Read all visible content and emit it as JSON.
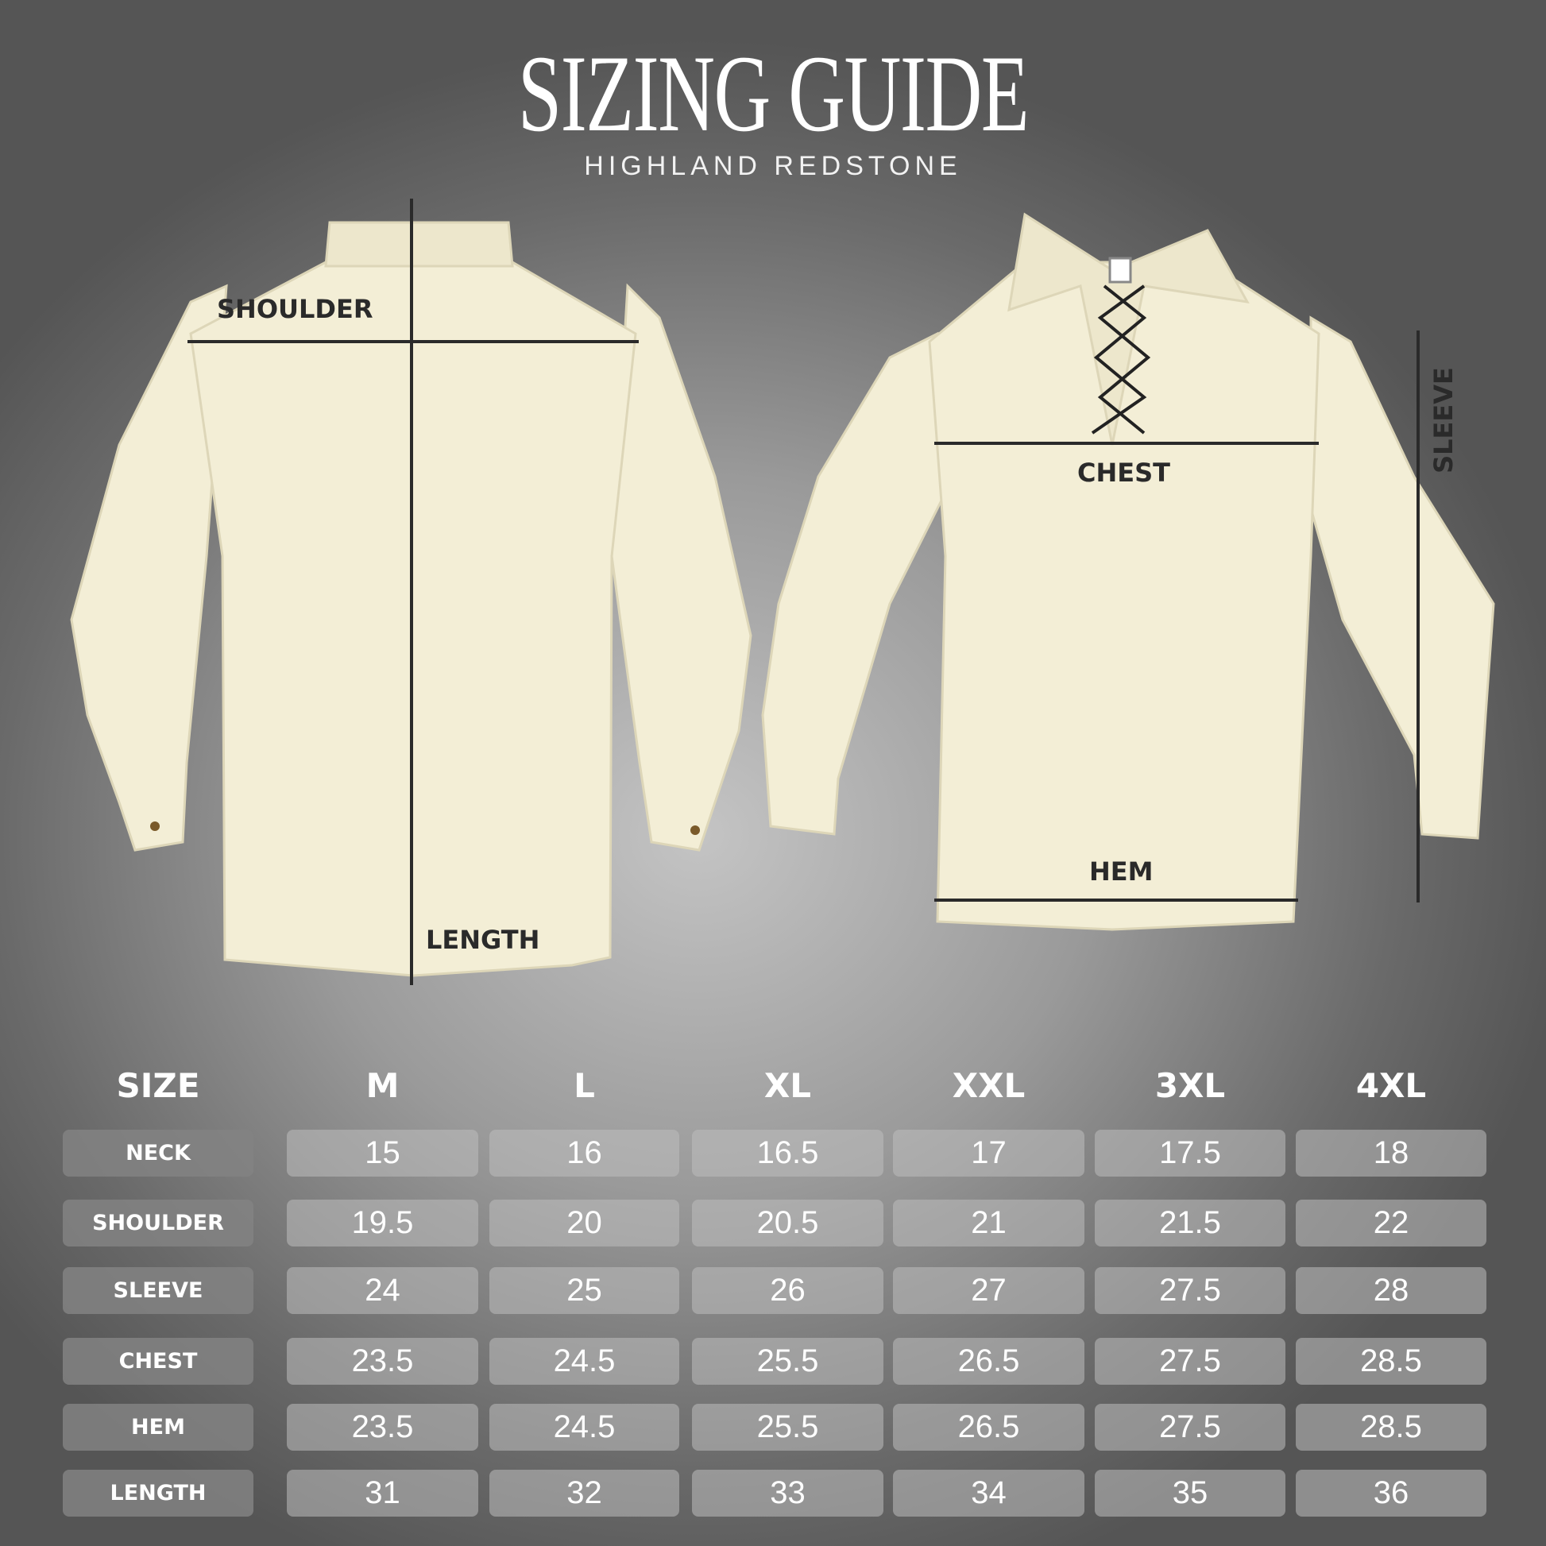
{
  "header": {
    "title": "SIZING GUIDE",
    "subtitle": "HIGHLAND REDSTONE"
  },
  "diagram": {
    "back_labels": {
      "shoulder": "SHOULDER",
      "length": "LENGTH"
    },
    "front_labels": {
      "chest": "CHEST",
      "hem": "HEM",
      "sleeve": "SLEEVE"
    },
    "shirt_color": "#f3eed6",
    "line_color": "#2a2a2a"
  },
  "table": {
    "corner": "SIZE",
    "sizes": [
      "M",
      "L",
      "XL",
      "XXL",
      "3XL",
      "4XL"
    ],
    "rows": [
      {
        "label": "NECK",
        "values": [
          "15",
          "16",
          "16.5",
          "17",
          "17.5",
          "18"
        ]
      },
      {
        "label": "SHOULDER",
        "values": [
          "19.5",
          "20",
          "20.5",
          "21",
          "21.5",
          "22"
        ]
      },
      {
        "label": "SLEEVE",
        "values": [
          "24",
          "25",
          "26",
          "27",
          "27.5",
          "28"
        ]
      },
      {
        "label": "CHEST",
        "values": [
          "23.5",
          "24.5",
          "25.5",
          "26.5",
          "27.5",
          "28.5"
        ]
      },
      {
        "label": "HEM",
        "values": [
          "23.5",
          "24.5",
          "25.5",
          "26.5",
          "27.5",
          "28.5"
        ]
      },
      {
        "label": "LENGTH",
        "values": [
          "31",
          "32",
          "33",
          "34",
          "35",
          "36"
        ]
      }
    ]
  }
}
